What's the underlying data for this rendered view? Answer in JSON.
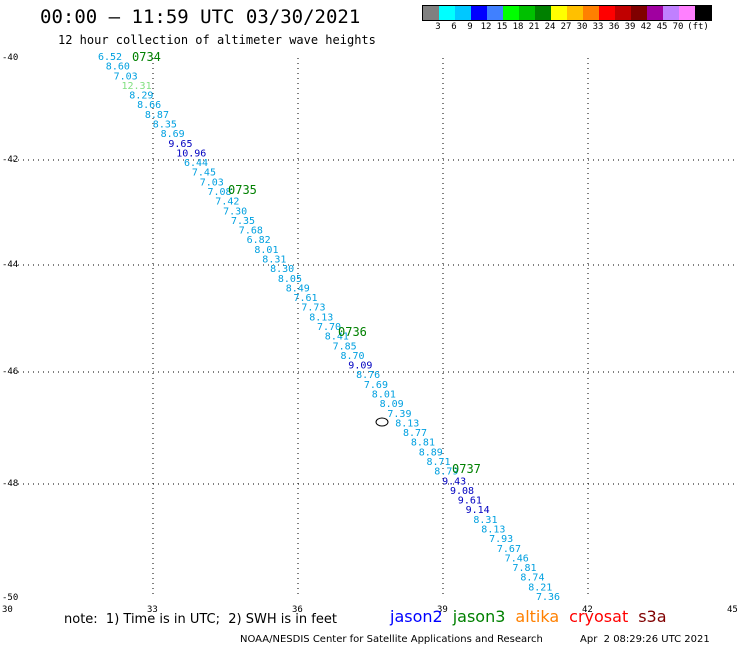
{
  "title": "00:00 — 11:59 UTC 03/30/2021",
  "subtitle": "12 hour collection of altimeter wave heights",
  "legend": {
    "colors": [
      "#808080",
      "#00ffff",
      "#00c8ff",
      "#0000ff",
      "#4080ff",
      "#00ff00",
      "#00c000",
      "#008000",
      "#ffff00",
      "#ffc000",
      "#ff8000",
      "#ff0000",
      "#c00000",
      "#800000",
      "#a000a0",
      "#c080ff",
      "#ff80ff",
      "#000000"
    ],
    "labels": [
      "3",
      "6",
      "9",
      "12",
      "15",
      "18",
      "21",
      "24",
      "27",
      "30",
      "33",
      "36",
      "39",
      "42",
      "45",
      "70",
      "(ft)"
    ]
  },
  "axes": {
    "lon_ticks": [
      "30",
      "33",
      "36",
      "39",
      "42",
      "45"
    ],
    "lat_ticks": [
      "-40",
      "-42",
      "-44",
      "-46",
      "-48",
      "-50"
    ]
  },
  "pass_times": [
    "0734",
    "0735",
    "0736",
    "0737"
  ],
  "points": [
    {
      "v": "6.52",
      "c": "#00a0e0"
    },
    {
      "v": "8.60",
      "c": "#00a0e0"
    },
    {
      "v": "7.03",
      "c": "#00a0e0"
    },
    {
      "v": "12.31",
      "c": "#80e080"
    },
    {
      "v": "8.29",
      "c": "#00a0e0"
    },
    {
      "v": "8.66",
      "c": "#00a0e0"
    },
    {
      "v": "8.87",
      "c": "#00a0e0"
    },
    {
      "v": "8.35",
      "c": "#00a0e0"
    },
    {
      "v": "8.69",
      "c": "#00a0e0"
    },
    {
      "v": "9.65",
      "c": "#0000c0"
    },
    {
      "v": "10.96",
      "c": "#0000c0"
    },
    {
      "v": "6.44",
      "c": "#00a0e0"
    },
    {
      "v": "7.45",
      "c": "#00a0e0"
    },
    {
      "v": "7.03",
      "c": "#00a0e0"
    },
    {
      "v": "7.08",
      "c": "#00a0e0"
    },
    {
      "v": "7.42",
      "c": "#00a0e0"
    },
    {
      "v": "7.30",
      "c": "#00a0e0"
    },
    {
      "v": "7.35",
      "c": "#00a0e0"
    },
    {
      "v": "7.68",
      "c": "#00a0e0"
    },
    {
      "v": "6.82",
      "c": "#00a0e0"
    },
    {
      "v": "8.01",
      "c": "#00a0e0"
    },
    {
      "v": "8.31",
      "c": "#00a0e0"
    },
    {
      "v": "8.30",
      "c": "#00a0e0"
    },
    {
      "v": "8.05",
      "c": "#00a0e0"
    },
    {
      "v": "8.49",
      "c": "#00a0e0"
    },
    {
      "v": "7.61",
      "c": "#00a0e0"
    },
    {
      "v": "7.73",
      "c": "#00a0e0"
    },
    {
      "v": "8.13",
      "c": "#00a0e0"
    },
    {
      "v": "7.70",
      "c": "#00a0e0"
    },
    {
      "v": "8.41",
      "c": "#00a0e0"
    },
    {
      "v": "7.85",
      "c": "#00a0e0"
    },
    {
      "v": "8.70",
      "c": "#00a0e0"
    },
    {
      "v": "9.09",
      "c": "#0000c0"
    },
    {
      "v": "8.76",
      "c": "#00a0e0"
    },
    {
      "v": "7.69",
      "c": "#00a0e0"
    },
    {
      "v": "8.01",
      "c": "#00a0e0"
    },
    {
      "v": "8.09",
      "c": "#00a0e0"
    },
    {
      "v": "7.39",
      "c": "#00a0e0"
    },
    {
      "v": "8.13",
      "c": "#00a0e0"
    },
    {
      "v": "8.77",
      "c": "#00a0e0"
    },
    {
      "v": "8.81",
      "c": "#00a0e0"
    },
    {
      "v": "8.89",
      "c": "#00a0e0"
    },
    {
      "v": "8.71",
      "c": "#00a0e0"
    },
    {
      "v": "8.79",
      "c": "#00a0e0"
    },
    {
      "v": "9.43",
      "c": "#0000c0"
    },
    {
      "v": "9.08",
      "c": "#0000c0"
    },
    {
      "v": "9.61",
      "c": "#0000c0"
    },
    {
      "v": "9.14",
      "c": "#0000c0"
    },
    {
      "v": "8.31",
      "c": "#00a0e0"
    },
    {
      "v": "8.13",
      "c": "#00a0e0"
    },
    {
      "v": "7.93",
      "c": "#00a0e0"
    },
    {
      "v": "7.67",
      "c": "#00a0e0"
    },
    {
      "v": "7.46",
      "c": "#00a0e0"
    },
    {
      "v": "7.81",
      "c": "#00a0e0"
    },
    {
      "v": "8.74",
      "c": "#00a0e0"
    },
    {
      "v": "8.21",
      "c": "#00a0e0"
    },
    {
      "v": "7.36",
      "c": "#00a0e0"
    }
  ],
  "note": "note:  1) Time is in UTC;  2) SWH is in feet",
  "satellites": [
    {
      "name": "jason2",
      "color": "#0000ff"
    },
    {
      "name": "jason3",
      "color": "#008000"
    },
    {
      "name": "altika",
      "color": "#ff8000"
    },
    {
      "name": "cryosat",
      "color": "#ff0000"
    },
    {
      "name": "s3a",
      "color": "#800000"
    }
  ],
  "credit": "NOAA/NESDIS Center for Satellite Applications and Research",
  "timestamp": "Apr  2 08:29:26 UTC 2021"
}
